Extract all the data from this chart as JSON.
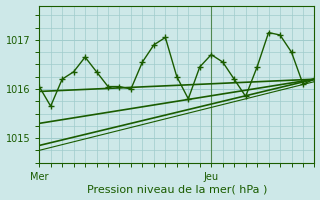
{
  "background_color": "#cde8e8",
  "grid_color": "#a0cccc",
  "line_color": "#1a5c00",
  "ylim": [
    1014.5,
    1017.7
  ],
  "xlim": [
    0,
    48
  ],
  "yticks": [
    1015,
    1016,
    1017
  ],
  "ytick_fontsize": 7,
  "xtick_labels": [
    "Mer",
    "Jeu"
  ],
  "xtick_positions": [
    0,
    30
  ],
  "xtick_fontsize": 7,
  "xlabel": "Pression niveau de la mer( hPa )",
  "xlabel_fontsize": 8,
  "vline_x": 30,
  "zigzag": {
    "x": [
      0,
      2,
      4,
      6,
      8,
      10,
      12,
      14,
      16,
      18,
      20,
      22,
      24,
      26,
      28,
      30,
      32,
      34,
      36,
      38,
      40,
      42,
      44,
      46,
      48
    ],
    "y": [
      1016.05,
      1015.65,
      1016.2,
      1016.35,
      1016.65,
      1016.35,
      1016.05,
      1016.05,
      1016.0,
      1016.55,
      1016.9,
      1017.05,
      1016.25,
      1015.8,
      1016.45,
      1016.7,
      1016.55,
      1016.2,
      1015.85,
      1016.45,
      1017.15,
      1017.1,
      1016.75,
      1016.1,
      1016.2
    ],
    "marker": "+",
    "markersize": 4,
    "linewidth": 1.0,
    "zorder": 5
  },
  "smooth_lines": [
    {
      "x": [
        0,
        48
      ],
      "y": [
        1015.95,
        1016.2
      ],
      "linewidth": 1.2,
      "zorder": 3
    },
    {
      "x": [
        0,
        48
      ],
      "y": [
        1015.3,
        1016.2
      ],
      "linewidth": 1.2,
      "zorder": 3
    },
    {
      "x": [
        0,
        48
      ],
      "y": [
        1014.85,
        1016.2
      ],
      "linewidth": 1.2,
      "zorder": 3
    },
    {
      "x": [
        0,
        48
      ],
      "y": [
        1014.75,
        1016.15
      ],
      "linewidth": 0.8,
      "zorder": 3
    }
  ],
  "minor_x_interval": 2,
  "minor_y_interval": 0.25
}
